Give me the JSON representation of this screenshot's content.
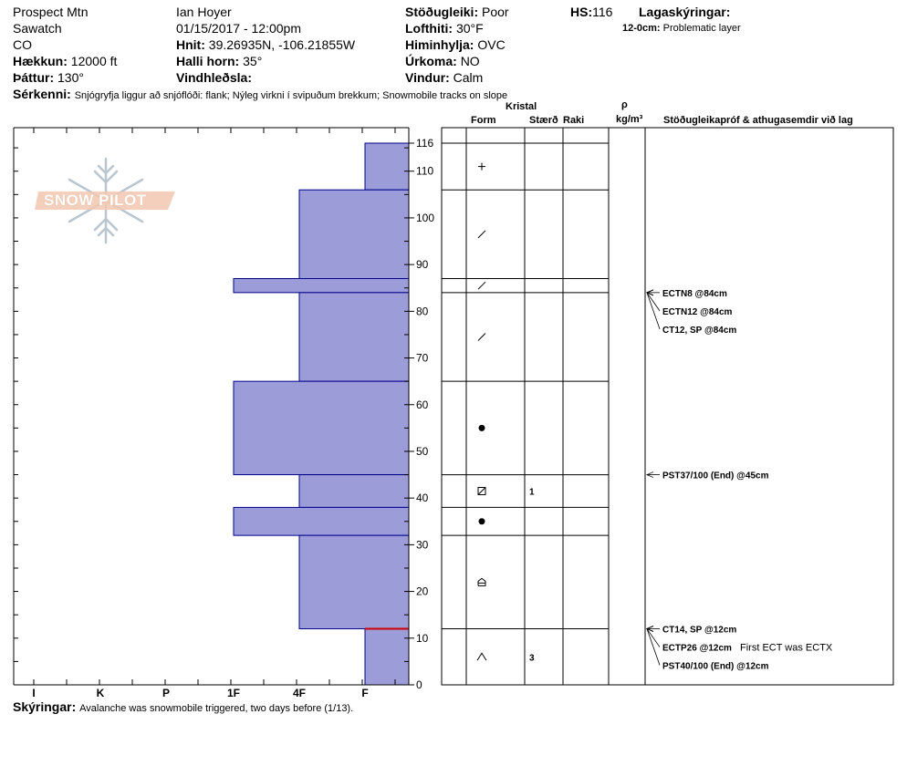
{
  "header": {
    "location": "Prospect Mtn",
    "range": "Sawatch",
    "state": "CO",
    "elevation_label": "Hækkun:",
    "elevation_value": "12000 ft",
    "aspect_label": "Þáttur:",
    "aspect_value": "130°",
    "observer": "Ian Hoyer",
    "datetime": "01/15/2017 - 12:00pm",
    "coords_label": "Hnit:",
    "coords_value": "39.26935N, -106.21855W",
    "slope_label": "Halli horn:",
    "slope_value": "35°",
    "wind_loading_label": "Vindhleðsla:",
    "wind_loading_value": "",
    "stability_label": "Stöðugleiki:",
    "stability_value": "Poor",
    "air_temp_label": "Lofthiti:",
    "air_temp_value": "30°F",
    "sky_label": "Himinhylja:",
    "sky_value": "OVC",
    "precip_label": "Úrkoma:",
    "precip_value": "NO",
    "wind_label": "Vindur:",
    "wind_value": "Calm",
    "hs_label": "HS:",
    "hs_value": "116",
    "legend_title": "Lagaskýringar:",
    "legend_key": "12-0cm:",
    "legend_text": "Problematic layer",
    "features_label": "Sérkenni:",
    "features_value": "Snjógryfja liggur að snjóflóði: flank; Nýleg virkni í svipuðum brekkum; Snowmobile tracks on slope"
  },
  "columns": {
    "crystal": "Kristal",
    "form": "Form",
    "size": "Stærð",
    "moisture": "Raki",
    "rho": "ρ",
    "density_unit": "kg/m³",
    "tests": "Stöðugleikapróf & athugasemdir við lag"
  },
  "footer": {
    "comments_label": "Skýringar:",
    "comments_value": "Avalanche was snowmobile triggered, two days before (1/13)."
  },
  "logo_text": "SNOW PILOT",
  "colors": {
    "layer_fill": "#9c9cd8",
    "layer_stroke": "#00008b",
    "problem_layer": "#cc0000"
  },
  "chart_data": {
    "type": "bar",
    "title": "",
    "xlabel": "",
    "ylabel": "",
    "hand_hardness_ticks": [
      "I",
      "K",
      "P",
      "1F",
      "4F",
      "F"
    ],
    "height_ticks": [
      0,
      10,
      20,
      30,
      40,
      50,
      60,
      70,
      80,
      90,
      100,
      110,
      116
    ],
    "ylim": [
      0,
      116
    ],
    "layers": [
      {
        "top": 116,
        "bottom": 106,
        "hardness": "F",
        "form": "+",
        "size": ""
      },
      {
        "top": 106,
        "bottom": 87,
        "hardness": "4F",
        "form": "/",
        "size": ""
      },
      {
        "top": 87,
        "bottom": 84,
        "hardness": "1F",
        "form": "/",
        "size": ""
      },
      {
        "top": 84,
        "bottom": 65,
        "hardness": "4F",
        "form": "/",
        "size": ""
      },
      {
        "top": 65,
        "bottom": 45,
        "hardness": "1F",
        "form": "●",
        "size": ""
      },
      {
        "top": 45,
        "bottom": 38,
        "hardness": "4F",
        "form": "⊠",
        "size": "1"
      },
      {
        "top": 38,
        "bottom": 32,
        "hardness": "1F",
        "form": "●",
        "size": ""
      },
      {
        "top": 32,
        "bottom": 12,
        "hardness": "4F",
        "form": "⌂",
        "size": ""
      },
      {
        "top": 12,
        "bottom": 0,
        "hardness": "F",
        "form": "∧",
        "size": "3"
      }
    ],
    "problem_layer": {
      "top": 12,
      "bottom": 0
    },
    "tests": [
      {
        "depth": 84,
        "label": "ECTN8 @84cm",
        "note": ""
      },
      {
        "depth": 84,
        "label": "ECTN12 @84cm",
        "note": ""
      },
      {
        "depth": 84,
        "label": "CT12, SP @84cm",
        "note": ""
      },
      {
        "depth": 45,
        "label": "PST37/100 (End) @45cm",
        "note": ""
      },
      {
        "depth": 12,
        "label": "CT14, SP @12cm",
        "note": ""
      },
      {
        "depth": 12,
        "label": "ECTP26 @12cm",
        "note": "First ECT was ECTX"
      },
      {
        "depth": 12,
        "label": "PST40/100 (End) @12cm",
        "note": ""
      }
    ]
  }
}
